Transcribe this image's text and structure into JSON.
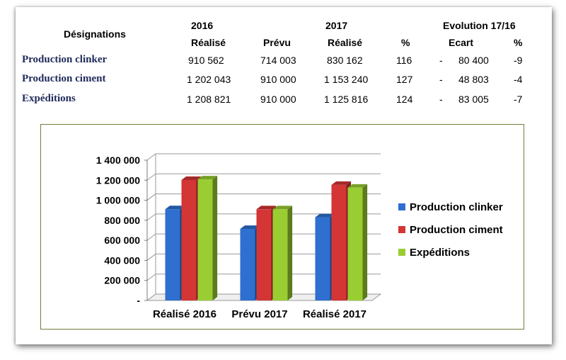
{
  "table": {
    "designations_label": "Désignations",
    "year_2016": "2016",
    "year_2017": "2017",
    "evolution_label": "Evolution 17/16",
    "col_realise_2016": "Réalisé",
    "col_prevu": "Prévu",
    "col_realise_2017": "Réalisé",
    "col_pct": "%",
    "col_ecart": "Ecart",
    "col_evo_pct": "%",
    "rows": [
      {
        "label": "Production clinker",
        "realise_2016": "910 562",
        "prevu": "714 003",
        "realise_2017": "830 162",
        "pct": "116",
        "ecart_sign": "-",
        "ecart": "80 400",
        "evo_pct": "-9"
      },
      {
        "label": "Production ciment",
        "realise_2016": "1 202 043",
        "prevu": "910 000",
        "realise_2017": "1 153 240",
        "pct": "127",
        "ecart_sign": "-",
        "ecart": "48 803",
        "evo_pct": "-4"
      },
      {
        "label": "Expéditions",
        "realise_2016": "1 208 821",
        "prevu": "910 000",
        "realise_2017": "1 125 816",
        "pct": "124",
        "ecart_sign": "-",
        "ecart": "83 005",
        "evo_pct": "-7"
      }
    ]
  },
  "chart_data": {
    "type": "bar",
    "categories": [
      "Réalisé 2016",
      "Prévu 2017",
      "Réalisé 2017"
    ],
    "series": [
      {
        "name": "Production clinker",
        "values": [
          910562,
          714003,
          830162
        ],
        "color": "#2e6fd0"
      },
      {
        "name": "Production ciment",
        "values": [
          1202043,
          910000,
          1153240
        ],
        "color": "#d43535"
      },
      {
        "name": "Expéditions",
        "values": [
          1208821,
          910000,
          1125816
        ],
        "color": "#9acd32"
      }
    ],
    "ylim": [
      0,
      1400000
    ],
    "yticks": [
      0,
      200000,
      400000,
      600000,
      800000,
      1000000,
      1200000,
      1400000
    ],
    "ytick_labels": [
      "-",
      "200 000",
      "400 000",
      "600 000",
      "800 000",
      "1 000 000",
      "1 200 000",
      "1 400 000"
    ],
    "grid": true,
    "legend_position": "right",
    "style": "3d-clustered"
  }
}
